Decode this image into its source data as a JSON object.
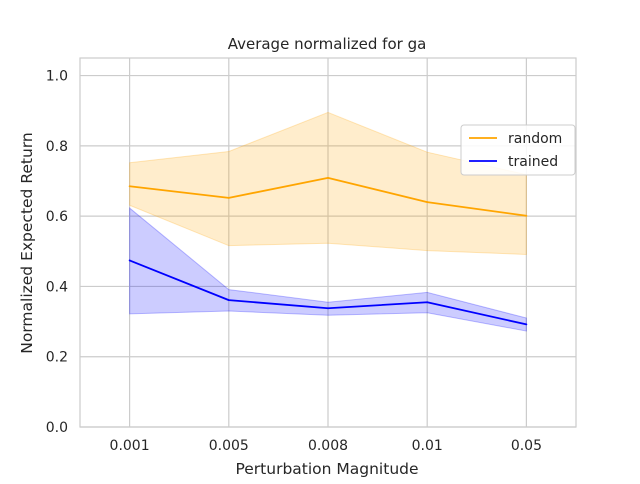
{
  "chart_data": {
    "type": "line",
    "title": "Average normalized for ga",
    "xlabel": "Perturbation Magnitude",
    "ylabel": "Normalized Expected Return",
    "categories": [
      "0.001",
      "0.005",
      "0.008",
      "0.01",
      "0.05"
    ],
    "ylim": [
      0.0,
      1.05
    ],
    "yticks": [
      0.0,
      0.2,
      0.4,
      0.6,
      0.8,
      1.0
    ],
    "ytick_labels": [
      "0.0",
      "0.2",
      "0.4",
      "0.6",
      "0.8",
      "1.0"
    ],
    "grid": true,
    "legend_position": "right",
    "series": [
      {
        "name": "random",
        "color": "#ffa500",
        "values": [
          0.685,
          0.652,
          0.709,
          0.64,
          0.601
        ],
        "band_upper": [
          0.752,
          0.784,
          0.895,
          0.782,
          0.718
        ],
        "band_lower": [
          0.631,
          0.516,
          0.523,
          0.502,
          0.491
        ]
      },
      {
        "name": "trained",
        "color": "#0000ff",
        "values": [
          0.474,
          0.361,
          0.338,
          0.355,
          0.292
        ],
        "band_upper": [
          0.623,
          0.391,
          0.355,
          0.383,
          0.31
        ],
        "band_lower": [
          0.322,
          0.33,
          0.318,
          0.325,
          0.273
        ]
      }
    ]
  }
}
